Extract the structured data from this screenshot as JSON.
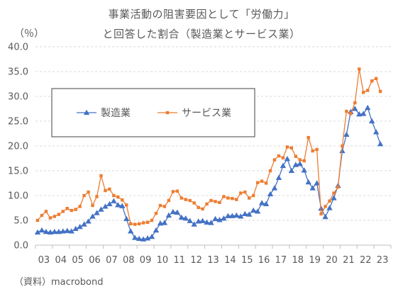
{
  "title_lines": [
    "事業活動の阻害要因として「労働力」",
    "と回答した割合（製造業とサービス業）"
  ],
  "unit_label": "（％）",
  "source": "（資料）macrobond",
  "chart_data": {
    "type": "line",
    "x_start": "2003 Q1",
    "x_tick_labels": [
      "03",
      "04",
      "05",
      "06",
      "07",
      "08",
      "09",
      "10",
      "11",
      "12",
      "13",
      "14",
      "15",
      "16",
      "17",
      "18",
      "19",
      "20",
      "21",
      "22",
      "23"
    ],
    "ylim": [
      0,
      40
    ],
    "y_ticks": [
      "0.0",
      "5.0",
      "10.0",
      "15.0",
      "20.0",
      "25.0",
      "30.0",
      "35.0",
      "40.0"
    ],
    "grid": true,
    "legend_position": "upper-left",
    "series": [
      {
        "name": "製造業",
        "color": "#4472C4",
        "marker": "triangle",
        "values": [
          2.6,
          3.0,
          2.7,
          2.6,
          2.7,
          2.7,
          2.8,
          2.9,
          2.8,
          3.3,
          3.7,
          4.2,
          4.8,
          5.8,
          6.5,
          7.2,
          7.8,
          8.3,
          8.9,
          8.1,
          7.9,
          5.3,
          2.8,
          1.5,
          1.3,
          1.2,
          1.4,
          1.7,
          3.0,
          4.4,
          4.5,
          6.0,
          6.7,
          6.6,
          5.6,
          5.4,
          4.9,
          4.2,
          4.8,
          4.9,
          4.6,
          4.5,
          5.3,
          5.1,
          5.4,
          5.9,
          5.9,
          6.0,
          5.8,
          6.3,
          6.2,
          7.0,
          6.8,
          8.5,
          8.3,
          10.3,
          11.5,
          13.6,
          16.0,
          17.4,
          15.0,
          16.2,
          16.4,
          15.1,
          12.7,
          11.5,
          12.5,
          7.4,
          5.7,
          7.5,
          9.5,
          12.0,
          19.0,
          22.3,
          26.9,
          27.5,
          26.4,
          26.5,
          27.7,
          25.0,
          22.8,
          20.4
        ]
      },
      {
        "name": "サービス業",
        "color": "#ED7D31",
        "marker": "square",
        "values": [
          5.0,
          6.0,
          6.8,
          5.5,
          5.8,
          6.2,
          6.8,
          7.4,
          7.0,
          7.2,
          7.8,
          10.0,
          10.7,
          8.0,
          9.8,
          14.0,
          11.0,
          11.3,
          10.0,
          9.7,
          9.1,
          8.1,
          4.3,
          4.2,
          4.3,
          4.5,
          4.6,
          5.0,
          6.4,
          8.0,
          7.8,
          9.0,
          10.8,
          10.9,
          9.5,
          9.2,
          9.0,
          8.5,
          7.6,
          7.3,
          8.3,
          9.0,
          8.8,
          8.6,
          9.8,
          9.5,
          9.4,
          9.2,
          10.5,
          10.7,
          9.5,
          10.0,
          12.6,
          12.9,
          12.5,
          15.0,
          17.2,
          18.0,
          17.6,
          19.8,
          19.6,
          17.9,
          17.2,
          17.0,
          21.7,
          19.0,
          19.3,
          6.3,
          7.8,
          8.9,
          10.5,
          11.7,
          20.0,
          27.0,
          26.5,
          28.7,
          35.5,
          30.8,
          31.2,
          33.1,
          33.6,
          31.0
        ]
      }
    ]
  }
}
